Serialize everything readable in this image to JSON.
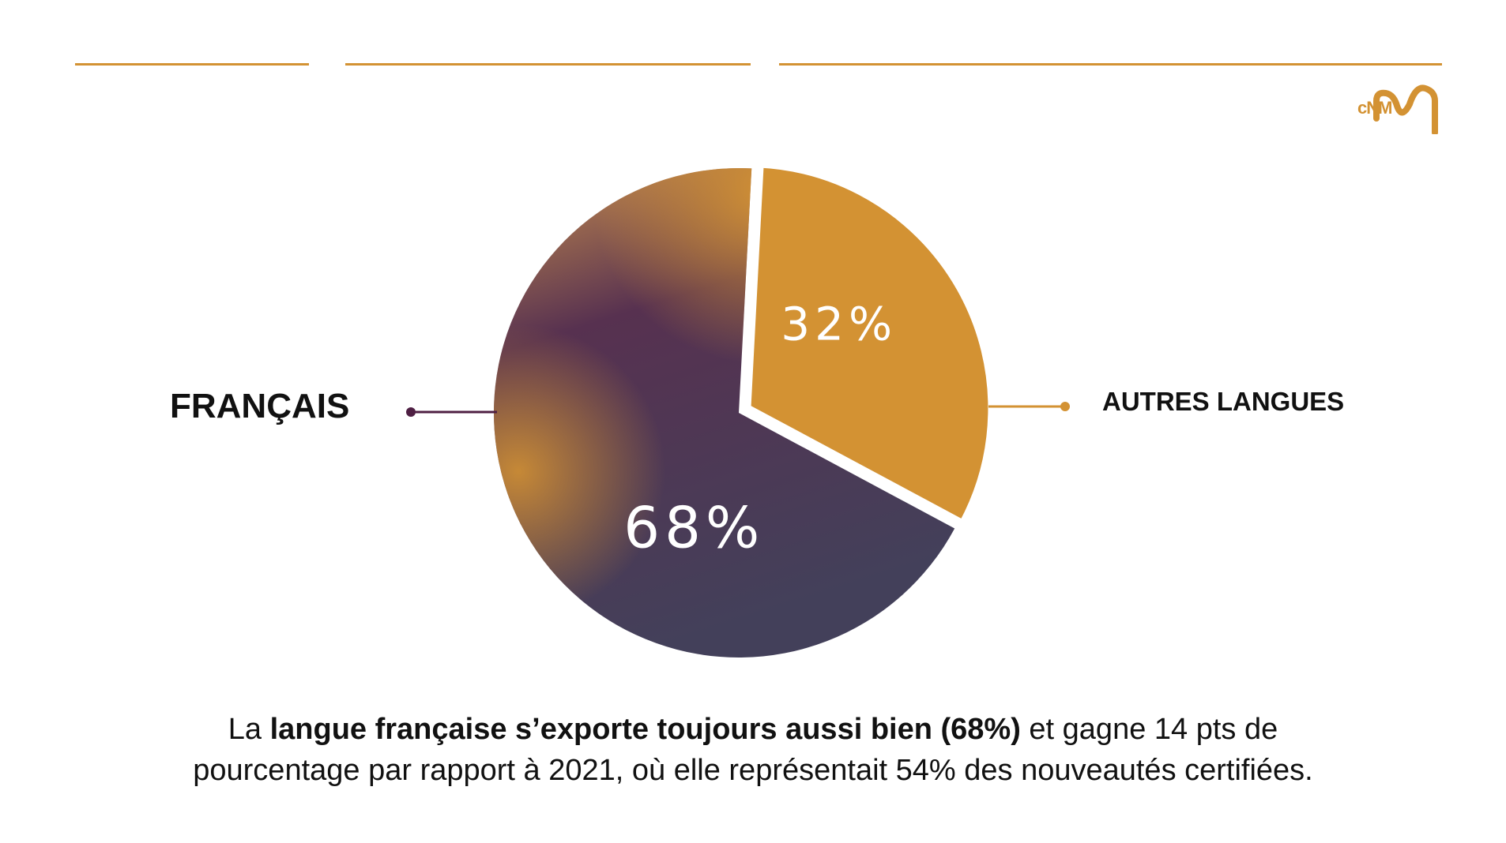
{
  "colors": {
    "accent": "#d39233",
    "francais_dark": "#4e2e4f",
    "francais_light": "#c98f4e",
    "francais_line": "#4e1f43",
    "text": "#111111"
  },
  "logo": {
    "text": "cNM"
  },
  "chart_data": {
    "type": "pie",
    "title": "",
    "slices": [
      {
        "name": "FRANÇAIS",
        "value": 68,
        "label": "68%"
      },
      {
        "name": "AUTRES LANGUES",
        "value": 32,
        "label": "32%",
        "exploded": true
      }
    ],
    "legend": "callouts left and right"
  },
  "labels": {
    "francais": "FRANÇAIS",
    "autres": "AUTRES LANGUES"
  },
  "caption": {
    "prefix": "La ",
    "bold": "langue française s’exporte toujours aussi bien (68%)",
    "line1_rest": " et gagne 14 pts de",
    "line2": "pourcentage par rapport à  2021, où elle représentait 54% des nouveautés certifiées."
  }
}
